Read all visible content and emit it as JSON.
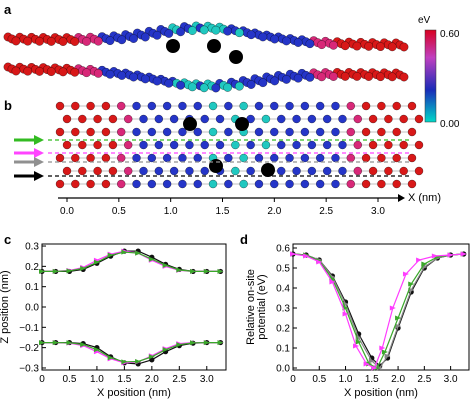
{
  "panels": {
    "a": {
      "letter": "a"
    },
    "b": {
      "letter": "b"
    },
    "c": {
      "letter": "c"
    },
    "d": {
      "letter": "d"
    }
  },
  "colorbar": {
    "unit": "eV",
    "max_label": "0.60",
    "min_label": "0.00",
    "colors": [
      "#00d8c8",
      "#1a2bb8",
      "#c040c0",
      "#d80020"
    ]
  },
  "colors": {
    "black_series": "#111111",
    "magenta_series": "#ff3cff",
    "green_series": "#3aa82a",
    "gray_series": "#888888",
    "arrow_green": "#33bb22",
    "arrow_magenta": "#ff44ff",
    "arrow_gray": "#909090",
    "arrow_black": "#000000",
    "atom_red": "#d81818",
    "atom_blue": "#2535c8",
    "atom_cyan": "#20c8c0",
    "atom_magenta": "#d82878",
    "defect_black": "#000000"
  },
  "xaxis_b": {
    "ticks": [
      "0.0",
      "0.5",
      "1.0",
      "1.5",
      "2.0",
      "2.5",
      "3.0"
    ],
    "label": "X (nm)"
  },
  "chart_data": [
    {
      "panel": "c",
      "type": "line",
      "xlabel": "X position (nm)",
      "ylabel": "Z position (nm)",
      "xlim": [
        0,
        3.35
      ],
      "ylim": [
        -0.31,
        0.31
      ],
      "xticks": [
        "0",
        "0.5",
        "1.0",
        "1.5",
        "2.0",
        "2.5",
        "3.0"
      ],
      "yticks": [
        "−0.3",
        "−0.2",
        "−0.1",
        "0.0",
        "0.1",
        "0.2",
        "0.3"
      ],
      "ytick_values": [
        -0.3,
        -0.2,
        -0.1,
        0.0,
        0.1,
        0.2,
        0.3
      ],
      "xtick_values": [
        0,
        0.5,
        1.0,
        1.5,
        2.0,
        2.5,
        3.0
      ],
      "series": [
        {
          "color_key": "black_series",
          "marker": "circle",
          "x": [
            0.0,
            0.25,
            0.5,
            0.75,
            1.0,
            1.25,
            1.5,
            1.75,
            2.0,
            2.25,
            2.5,
            2.75,
            3.0,
            3.25
          ],
          "y": [
            0.175,
            0.175,
            0.175,
            0.185,
            0.215,
            0.25,
            0.275,
            0.275,
            0.245,
            0.21,
            0.185,
            0.175,
            0.175,
            0.175
          ]
        },
        {
          "color_key": "magenta_series",
          "marker": "triangle",
          "x": [
            0.0,
            0.25,
            0.5,
            0.75,
            1.0,
            1.25,
            1.5,
            1.75,
            2.0,
            2.25,
            2.5,
            2.75,
            3.0,
            3.25
          ],
          "y": [
            0.175,
            0.175,
            0.18,
            0.195,
            0.23,
            0.26,
            0.275,
            0.265,
            0.23,
            0.2,
            0.18,
            0.175,
            0.175,
            0.175
          ]
        },
        {
          "color_key": "green_series",
          "marker": "triangle",
          "x": [
            0.0,
            0.25,
            0.5,
            0.75,
            1.0,
            1.25,
            1.5,
            1.75,
            2.0,
            2.25,
            2.5,
            2.75,
            3.0,
            3.25
          ],
          "y": [
            0.175,
            0.175,
            0.178,
            0.19,
            0.22,
            0.255,
            0.27,
            0.265,
            0.235,
            0.205,
            0.182,
            0.175,
            0.175,
            0.175
          ]
        },
        {
          "color_key": "black_series",
          "marker": "circle",
          "x": [
            0.0,
            0.25,
            0.5,
            0.75,
            1.0,
            1.25,
            1.5,
            1.75,
            2.0,
            2.25,
            2.5,
            2.75,
            3.0,
            3.25
          ],
          "y": [
            -0.175,
            -0.175,
            -0.175,
            -0.18,
            -0.2,
            -0.245,
            -0.275,
            -0.28,
            -0.26,
            -0.22,
            -0.19,
            -0.178,
            -0.175,
            -0.175
          ]
        },
        {
          "color_key": "magenta_series",
          "marker": "triangle",
          "x": [
            0.0,
            0.25,
            0.5,
            0.75,
            1.0,
            1.25,
            1.5,
            1.75,
            2.0,
            2.25,
            2.5,
            2.75,
            3.0,
            3.25
          ],
          "y": [
            -0.175,
            -0.175,
            -0.178,
            -0.19,
            -0.22,
            -0.255,
            -0.275,
            -0.27,
            -0.24,
            -0.205,
            -0.18,
            -0.175,
            -0.175,
            -0.175
          ]
        },
        {
          "color_key": "green_series",
          "marker": "triangle",
          "x": [
            0.0,
            0.25,
            0.5,
            0.75,
            1.0,
            1.25,
            1.5,
            1.75,
            2.0,
            2.25,
            2.5,
            2.75,
            3.0,
            3.25
          ],
          "y": [
            -0.175,
            -0.175,
            -0.176,
            -0.185,
            -0.21,
            -0.25,
            -0.27,
            -0.268,
            -0.245,
            -0.21,
            -0.185,
            -0.176,
            -0.175,
            -0.175
          ]
        }
      ]
    },
    {
      "panel": "d",
      "type": "line",
      "xlabel": "X position (nm)",
      "ylabel": "Relative on-site potential (eV)",
      "ylabel_lines": [
        "Relative on-site",
        "potential (eV)"
      ],
      "xlim": [
        0,
        3.35
      ],
      "ylim": [
        -0.01,
        0.62
      ],
      "xticks": [
        "0",
        "0.5",
        "1.0",
        "1.5",
        "2.0",
        "2.5",
        "3.0"
      ],
      "yticks": [
        "0.0",
        "0.1",
        "0.2",
        "0.3",
        "0.4",
        "0.5",
        "0.6"
      ],
      "ytick_values": [
        0.0,
        0.1,
        0.2,
        0.3,
        0.4,
        0.5,
        0.6
      ],
      "xtick_values": [
        0,
        0.5,
        1.0,
        1.5,
        2.0,
        2.5,
        3.0
      ],
      "series": [
        {
          "color_key": "black_series",
          "marker": "circle",
          "x": [
            0.0,
            0.25,
            0.5,
            0.75,
            1.0,
            1.25,
            1.5,
            1.65,
            1.8,
            2.0,
            2.25,
            2.5,
            2.75,
            3.0,
            3.25
          ],
          "y": [
            0.57,
            0.565,
            0.54,
            0.46,
            0.33,
            0.17,
            0.05,
            0.01,
            0.05,
            0.2,
            0.38,
            0.5,
            0.55,
            0.565,
            0.57
          ]
        },
        {
          "color_key": "gray_series",
          "marker": "triangle",
          "x": [
            0.0,
            0.25,
            0.5,
            0.75,
            1.0,
            1.25,
            1.5,
            1.65,
            1.8,
            2.0,
            2.25,
            2.5,
            2.75,
            3.0,
            3.25
          ],
          "y": [
            0.57,
            0.565,
            0.54,
            0.455,
            0.32,
            0.15,
            0.035,
            0.0,
            0.06,
            0.21,
            0.39,
            0.505,
            0.55,
            0.565,
            0.57
          ]
        },
        {
          "color_key": "green_series",
          "marker": "triangle",
          "x": [
            0.0,
            0.25,
            0.5,
            0.75,
            1.0,
            1.25,
            1.45,
            1.6,
            1.75,
            2.0,
            2.25,
            2.5,
            2.75,
            3.0,
            3.25
          ],
          "y": [
            0.57,
            0.565,
            0.535,
            0.445,
            0.3,
            0.13,
            0.02,
            0.0,
            0.08,
            0.25,
            0.42,
            0.52,
            0.555,
            0.565,
            0.57
          ]
        },
        {
          "color_key": "magenta_series",
          "marker": "triangle",
          "x": [
            0.0,
            0.25,
            0.5,
            0.75,
            1.0,
            1.2,
            1.4,
            1.55,
            1.7,
            1.9,
            2.15,
            2.4,
            2.7,
            3.0,
            3.25
          ],
          "y": [
            0.57,
            0.56,
            0.53,
            0.43,
            0.27,
            0.11,
            0.02,
            0.0,
            0.1,
            0.3,
            0.47,
            0.54,
            0.56,
            0.565,
            0.57
          ]
        }
      ]
    }
  ]
}
